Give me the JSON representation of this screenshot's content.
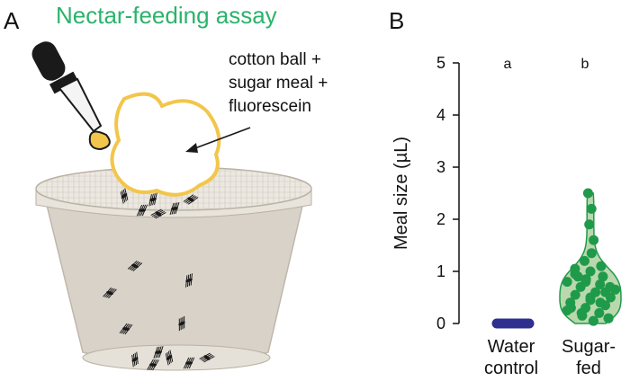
{
  "panels": {
    "a": {
      "letter": "A",
      "title": "Nectar-feeding assay",
      "annotation_lines": [
        "cotton ball +",
        "sugar meal +",
        "fluorescein"
      ],
      "colors": {
        "title": "#2bb36b",
        "cotton_outline": "#f2c64a",
        "cup": "#d8d2c8",
        "mesh": "#cfc8bd",
        "mosquito": "#1a1a1a"
      }
    },
    "b": {
      "letter": "B"
    }
  },
  "chart_data": {
    "type": "violin",
    "ylabel": "Meal size (µL)",
    "ylim": [
      0,
      5
    ],
    "yticks": [
      "0",
      "1",
      "2",
      "3",
      "4",
      "5"
    ],
    "categories": [
      "Water\ncontrol",
      "Sugar-\nfed"
    ],
    "category_lines": [
      [
        "Water",
        "control"
      ],
      [
        "Sugar-",
        "fed"
      ]
    ],
    "significance": [
      "a",
      "b"
    ],
    "series": [
      {
        "values": [
          0,
          0,
          0,
          0,
          0,
          0,
          0,
          0,
          0,
          0,
          0,
          0,
          0,
          0,
          0,
          0,
          0,
          0,
          0,
          0
        ],
        "color": "#2e2f8e"
      },
      {
        "values": [
          2.5,
          2.2,
          1.9,
          1.6,
          1.35,
          1.2,
          1.1,
          1.0,
          0.95,
          0.9,
          0.85,
          0.8,
          0.75,
          0.7,
          0.65,
          0.6,
          0.55,
          0.5,
          0.45,
          0.4,
          0.35,
          0.3,
          0.25,
          0.2,
          0.15,
          0.1,
          0.05,
          0.9,
          0.7,
          0.5,
          0.3,
          0.6,
          0.8,
          1.05,
          0.4,
          0.2,
          0.1,
          0.05
        ],
        "color": "#1f9a4b",
        "violin_fill": "#b9d8ad"
      }
    ],
    "grid": false,
    "legend": "none"
  }
}
